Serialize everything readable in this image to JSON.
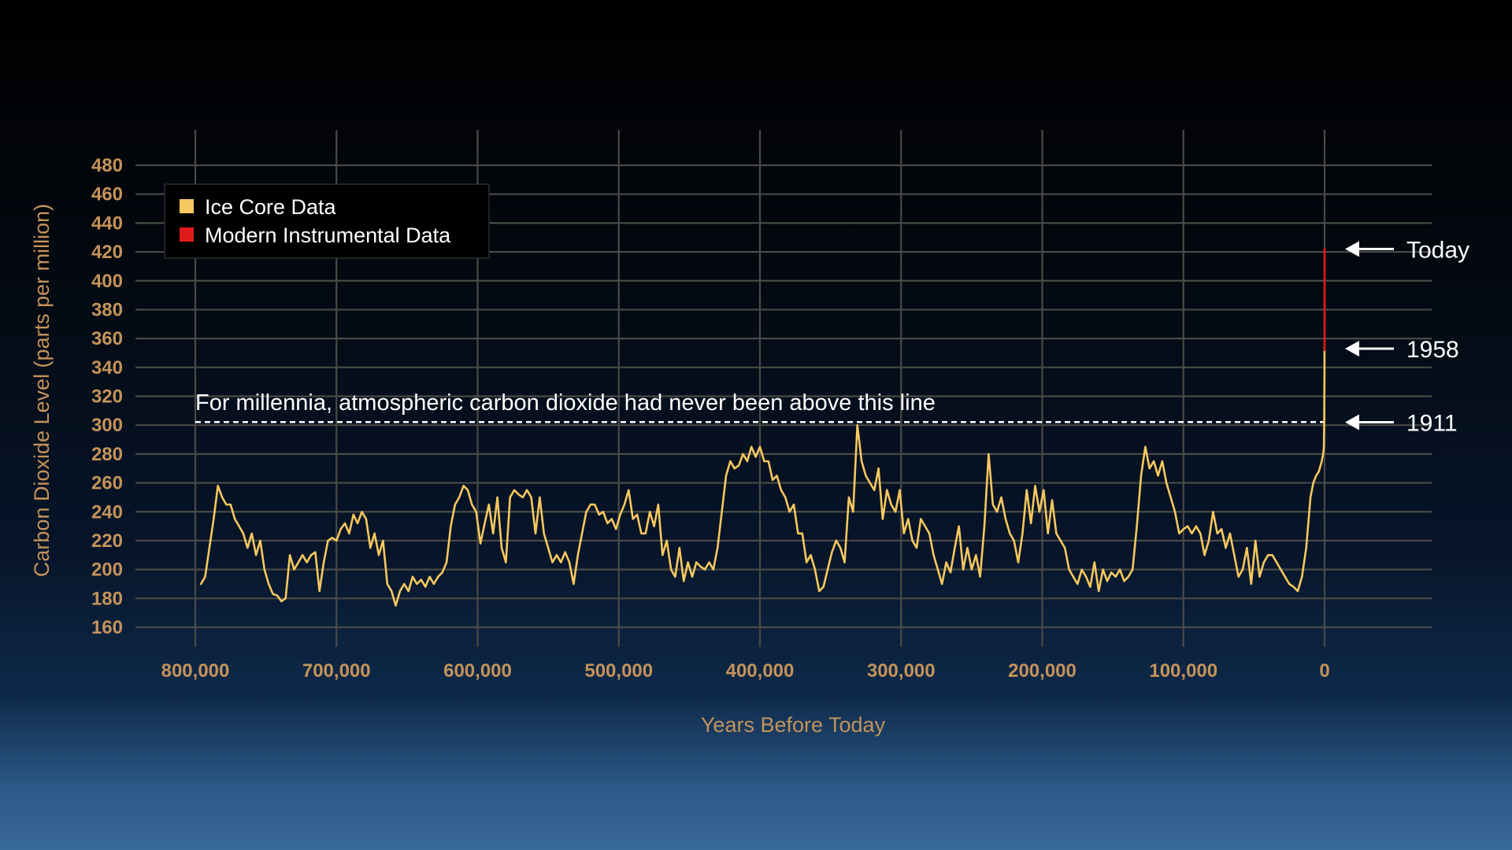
{
  "colors": {
    "axis_text": "#c4935a",
    "ice_core": "#f6c85f",
    "modern": "#e01b1b",
    "grid": "#4a4a46",
    "white": "#ffffff",
    "legend_bg": "#000000"
  },
  "chart_data": {
    "type": "line",
    "title": "",
    "xlabel": "Years Before Today",
    "ylabel": "Carbon Dioxide Level (parts per million)",
    "xlim": [
      800000,
      0
    ],
    "ylim": [
      160,
      480
    ],
    "grid": true,
    "legend_position": "top-left",
    "x_ticks": [
      800000,
      700000,
      600000,
      500000,
      400000,
      300000,
      200000,
      100000,
      0
    ],
    "x_tick_labels": [
      "800,000",
      "700,000",
      "600,000",
      "500,000",
      "400,000",
      "300,000",
      "200,000",
      "100,000",
      "0"
    ],
    "y_ticks": [
      160,
      180,
      200,
      220,
      240,
      260,
      280,
      300,
      320,
      340,
      360,
      380,
      400,
      420,
      440,
      460,
      480
    ],
    "y_tick_labels": [
      "160",
      "180",
      "200",
      "220",
      "240",
      "260",
      "280",
      "300",
      "320",
      "340",
      "360",
      "380",
      "400",
      "420",
      "440",
      "460",
      "480"
    ],
    "legend": [
      {
        "label": "Ice Core Data",
        "color": "#f6c85f"
      },
      {
        "label": "Modern Instrumental Data",
        "color": "#e01b1b"
      }
    ],
    "series": [
      {
        "name": "Ice Core Data",
        "color": "#f6c85f",
        "points": [
          [
            796000,
            190
          ],
          [
            793000,
            195
          ],
          [
            790000,
            215
          ],
          [
            787000,
            235
          ],
          [
            784000,
            258
          ],
          [
            781000,
            250
          ],
          [
            778000,
            245
          ],
          [
            775000,
            245
          ],
          [
            772000,
            235
          ],
          [
            769000,
            230
          ],
          [
            766000,
            225
          ],
          [
            763000,
            215
          ],
          [
            760000,
            225
          ],
          [
            757000,
            210
          ],
          [
            754000,
            220
          ],
          [
            751000,
            200
          ],
          [
            748000,
            190
          ],
          [
            745000,
            183
          ],
          [
            742000,
            182
          ],
          [
            739000,
            178
          ],
          [
            736000,
            180
          ],
          [
            733000,
            210
          ],
          [
            730000,
            200
          ],
          [
            727000,
            205
          ],
          [
            724000,
            210
          ],
          [
            721000,
            205
          ],
          [
            718000,
            210
          ],
          [
            715000,
            212
          ],
          [
            712000,
            185
          ],
          [
            709000,
            205
          ],
          [
            706000,
            220
          ],
          [
            703000,
            222
          ],
          [
            700000,
            220
          ],
          [
            697000,
            228
          ],
          [
            694000,
            232
          ],
          [
            691000,
            225
          ],
          [
            688000,
            238
          ],
          [
            685000,
            232
          ],
          [
            682000,
            240
          ],
          [
            679000,
            235
          ],
          [
            676000,
            215
          ],
          [
            673000,
            225
          ],
          [
            670000,
            210
          ],
          [
            667000,
            220
          ],
          [
            664000,
            190
          ],
          [
            661000,
            185
          ],
          [
            658000,
            175
          ],
          [
            655000,
            185
          ],
          [
            652000,
            190
          ],
          [
            649000,
            185
          ],
          [
            646000,
            195
          ],
          [
            643000,
            190
          ],
          [
            640000,
            193
          ],
          [
            637000,
            188
          ],
          [
            634000,
            195
          ],
          [
            631000,
            190
          ],
          [
            628000,
            195
          ],
          [
            625000,
            198
          ],
          [
            622000,
            205
          ],
          [
            619000,
            230
          ],
          [
            616000,
            245
          ],
          [
            613000,
            250
          ],
          [
            610000,
            258
          ],
          [
            607000,
            255
          ],
          [
            604000,
            245
          ],
          [
            601000,
            240
          ],
          [
            598000,
            218
          ],
          [
            595000,
            232
          ],
          [
            592000,
            245
          ],
          [
            589000,
            225
          ],
          [
            586000,
            250
          ],
          [
            583000,
            215
          ],
          [
            580000,
            205
          ],
          [
            577000,
            250
          ],
          [
            574000,
            255
          ],
          [
            571000,
            252
          ],
          [
            568000,
            250
          ],
          [
            565000,
            255
          ],
          [
            562000,
            250
          ],
          [
            559000,
            225
          ],
          [
            556000,
            250
          ],
          [
            553000,
            225
          ],
          [
            550000,
            215
          ],
          [
            547000,
            205
          ],
          [
            544000,
            210
          ],
          [
            541000,
            205
          ],
          [
            538000,
            212
          ],
          [
            535000,
            205
          ],
          [
            532000,
            190
          ],
          [
            529000,
            210
          ],
          [
            526000,
            225
          ],
          [
            523000,
            240
          ],
          [
            520000,
            245
          ],
          [
            517000,
            245
          ],
          [
            514000,
            238
          ],
          [
            511000,
            240
          ],
          [
            508000,
            232
          ],
          [
            505000,
            235
          ],
          [
            502000,
            228
          ],
          [
            499000,
            238
          ],
          [
            496000,
            245
          ],
          [
            493000,
            255
          ],
          [
            490000,
            235
          ],
          [
            487000,
            238
          ],
          [
            484000,
            225
          ],
          [
            481000,
            225
          ],
          [
            478000,
            240
          ],
          [
            475000,
            230
          ],
          [
            472000,
            245
          ],
          [
            469000,
            210
          ],
          [
            466000,
            220
          ],
          [
            463000,
            200
          ],
          [
            460000,
            195
          ],
          [
            457000,
            215
          ],
          [
            454000,
            192
          ],
          [
            451000,
            205
          ],
          [
            448000,
            195
          ],
          [
            445000,
            205
          ],
          [
            442000,
            202
          ],
          [
            439000,
            200
          ],
          [
            436000,
            205
          ],
          [
            433000,
            200
          ],
          [
            430000,
            215
          ],
          [
            427000,
            240
          ],
          [
            424000,
            265
          ],
          [
            421000,
            275
          ],
          [
            418000,
            270
          ],
          [
            415000,
            272
          ],
          [
            412000,
            280
          ],
          [
            409000,
            275
          ],
          [
            406000,
            285
          ],
          [
            403000,
            278
          ],
          [
            400000,
            285
          ],
          [
            397000,
            275
          ],
          [
            394000,
            275
          ],
          [
            391000,
            262
          ],
          [
            388000,
            265
          ],
          [
            385000,
            255
          ],
          [
            382000,
            250
          ],
          [
            379000,
            240
          ],
          [
            376000,
            245
          ],
          [
            373000,
            225
          ],
          [
            370000,
            225
          ],
          [
            367000,
            205
          ],
          [
            364000,
            210
          ],
          [
            361000,
            200
          ],
          [
            358000,
            185
          ],
          [
            355000,
            188
          ],
          [
            352000,
            200
          ],
          [
            349000,
            212
          ],
          [
            346000,
            220
          ],
          [
            343000,
            215
          ],
          [
            340000,
            205
          ],
          [
            337000,
            250
          ],
          [
            334000,
            240
          ],
          [
            331000,
            300
          ],
          [
            328000,
            275
          ],
          [
            325000,
            265
          ],
          [
            322000,
            260
          ],
          [
            319000,
            255
          ],
          [
            316000,
            270
          ],
          [
            313000,
            235
          ],
          [
            310000,
            255
          ],
          [
            307000,
            245
          ],
          [
            304000,
            240
          ],
          [
            301000,
            255
          ],
          [
            298000,
            225
          ],
          [
            295000,
            235
          ],
          [
            292000,
            220
          ],
          [
            289000,
            215
          ],
          [
            286000,
            235
          ],
          [
            283000,
            230
          ],
          [
            280000,
            225
          ],
          [
            277000,
            210
          ],
          [
            274000,
            200
          ],
          [
            271000,
            190
          ],
          [
            268000,
            205
          ],
          [
            265000,
            198
          ],
          [
            262000,
            215
          ],
          [
            259000,
            230
          ],
          [
            256000,
            200
          ],
          [
            253000,
            215
          ],
          [
            250000,
            200
          ],
          [
            247000,
            210
          ],
          [
            244000,
            195
          ],
          [
            241000,
            230
          ],
          [
            238000,
            280
          ],
          [
            235000,
            245
          ],
          [
            232000,
            240
          ],
          [
            229000,
            250
          ],
          [
            226000,
            235
          ],
          [
            223000,
            225
          ],
          [
            220000,
            220
          ],
          [
            217000,
            205
          ],
          [
            214000,
            225
          ],
          [
            211000,
            255
          ],
          [
            208000,
            232
          ],
          [
            205000,
            258
          ],
          [
            202000,
            240
          ],
          [
            199000,
            255
          ],
          [
            196000,
            225
          ],
          [
            193000,
            248
          ],
          [
            190000,
            225
          ],
          [
            187000,
            220
          ],
          [
            184000,
            215
          ],
          [
            181000,
            200
          ],
          [
            178000,
            195
          ],
          [
            175000,
            190
          ],
          [
            172000,
            200
          ],
          [
            169000,
            195
          ],
          [
            166000,
            188
          ],
          [
            163000,
            205
          ],
          [
            160000,
            185
          ],
          [
            157000,
            200
          ],
          [
            154000,
            192
          ],
          [
            151000,
            198
          ],
          [
            148000,
            195
          ],
          [
            145000,
            200
          ],
          [
            142000,
            192
          ],
          [
            139000,
            195
          ],
          [
            136000,
            200
          ],
          [
            133000,
            230
          ],
          [
            130000,
            265
          ],
          [
            127000,
            285
          ],
          [
            124000,
            270
          ],
          [
            121000,
            275
          ],
          [
            118000,
            265
          ],
          [
            115000,
            275
          ],
          [
            112000,
            260
          ],
          [
            109000,
            250
          ],
          [
            106000,
            240
          ],
          [
            103000,
            225
          ],
          [
            100000,
            228
          ],
          [
            97000,
            230
          ],
          [
            94000,
            225
          ],
          [
            91000,
            230
          ],
          [
            88000,
            225
          ],
          [
            85000,
            210
          ],
          [
            82000,
            220
          ],
          [
            79000,
            240
          ],
          [
            76000,
            225
          ],
          [
            73000,
            228
          ],
          [
            70000,
            215
          ],
          [
            67000,
            225
          ],
          [
            64000,
            210
          ],
          [
            61000,
            195
          ],
          [
            58000,
            200
          ],
          [
            55000,
            215
          ],
          [
            52000,
            190
          ],
          [
            49000,
            220
          ],
          [
            46000,
            195
          ],
          [
            43000,
            205
          ],
          [
            40000,
            210
          ],
          [
            37000,
            210
          ],
          [
            34000,
            205
          ],
          [
            31000,
            200
          ],
          [
            28000,
            195
          ],
          [
            25000,
            190
          ],
          [
            22000,
            188
          ],
          [
            19000,
            185
          ],
          [
            16000,
            195
          ],
          [
            13000,
            215
          ],
          [
            10000,
            250
          ],
          [
            8000,
            260
          ],
          [
            6000,
            265
          ],
          [
            4000,
            268
          ],
          [
            2000,
            275
          ],
          [
            1000,
            280
          ],
          [
            500,
            285
          ],
          [
            300,
            300
          ],
          [
            150,
            320
          ],
          [
            80,
            335
          ],
          [
            40,
            352
          ]
        ]
      },
      {
        "name": "Modern Instrumental Data",
        "color": "#e01b1b",
        "points": [
          [
            40,
            352
          ],
          [
            25,
            370
          ],
          [
            10,
            395
          ],
          [
            0,
            422
          ]
        ]
      }
    ],
    "threshold_line": {
      "value": 300,
      "x_range": [
        800000,
        0
      ],
      "label": "For millennia, atmospheric carbon dioxide had never been above this line"
    },
    "markers": [
      {
        "label": "Today",
        "value": 422
      },
      {
        "label": "1958",
        "value": 353
      },
      {
        "label": "1911",
        "value": 302
      }
    ]
  }
}
